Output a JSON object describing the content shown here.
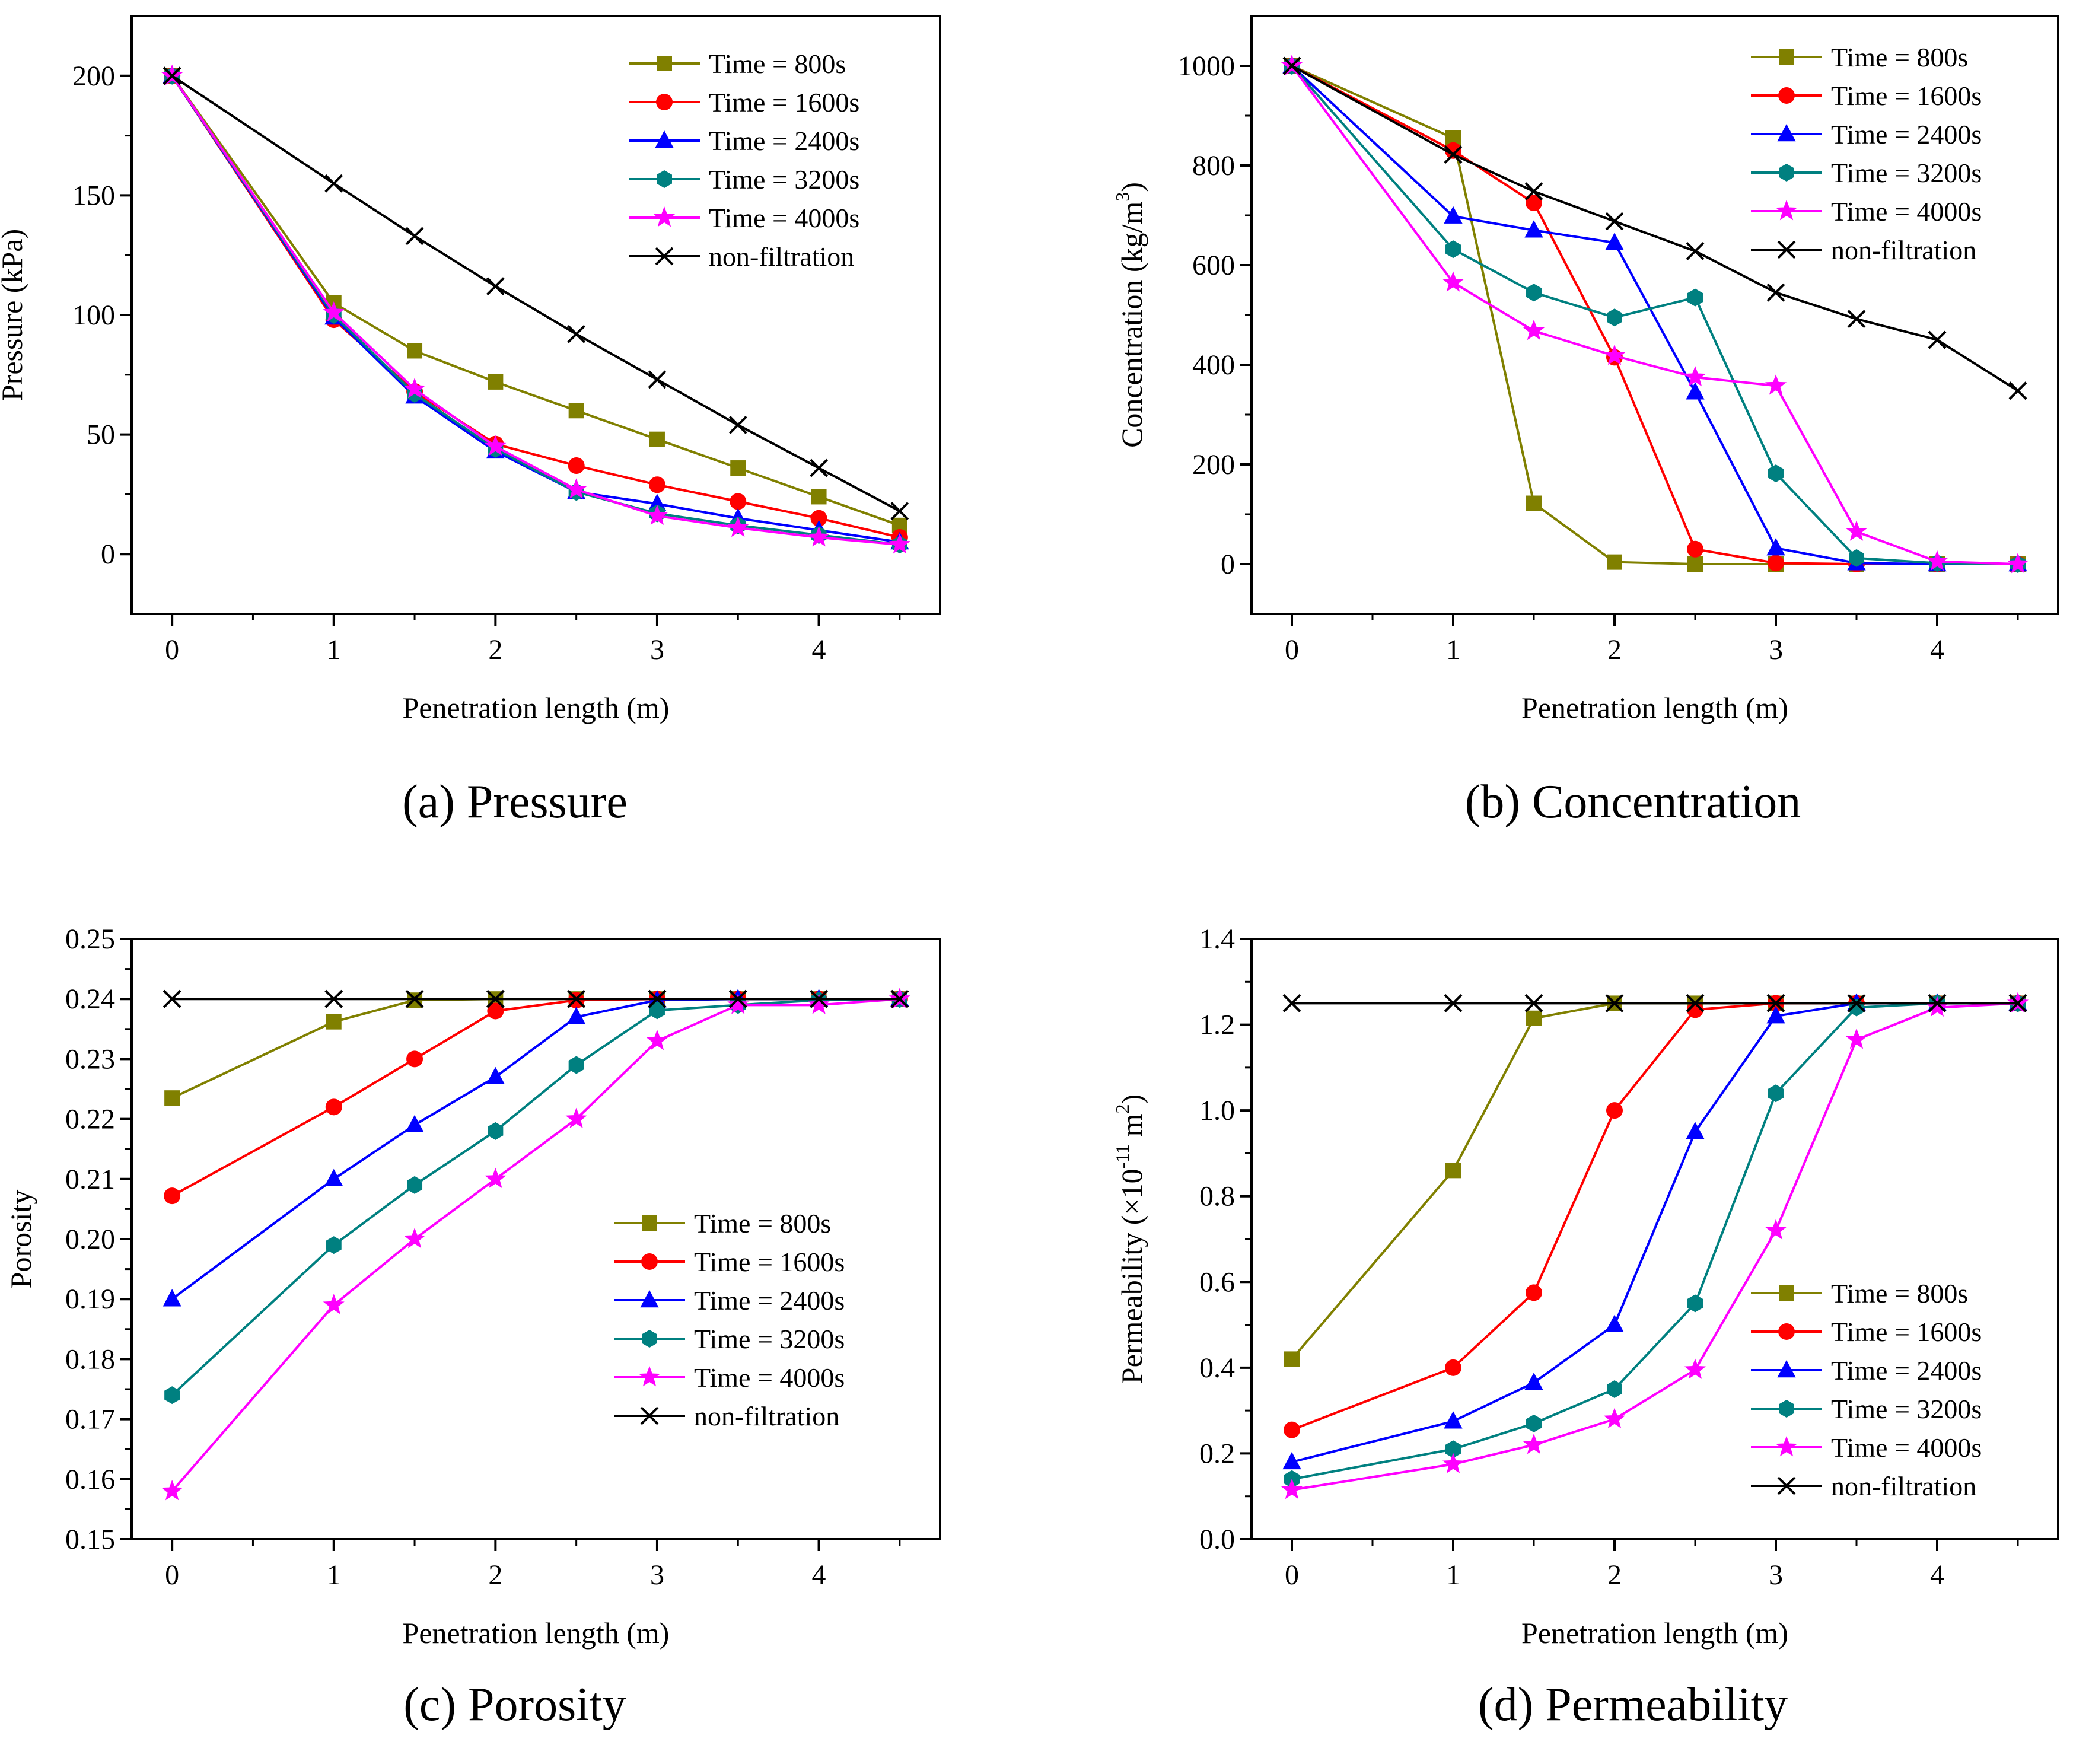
{
  "colors": {
    "t800": "#808000",
    "t1600": "#ff0000",
    "t2400": "#0000ff",
    "t3200": "#008080",
    "t4000": "#ff00ff",
    "nonfiltration": "#000000"
  },
  "chart_data": [
    {
      "id": "a",
      "type": "line",
      "caption": "(a) Pressure",
      "xlabel": "Penetration length (m)",
      "ylabel": "Pressure (kPa)",
      "xlim": [
        -0.25,
        4.75
      ],
      "ylim": [
        -25,
        225
      ],
      "xticks": [
        0,
        1,
        2,
        3,
        4
      ],
      "xtick_labels": [
        "0",
        "1",
        "2",
        "3",
        "4"
      ],
      "yticks": [
        0,
        50,
        100,
        150,
        200
      ],
      "ytick_labels": [
        "0",
        "50",
        "100",
        "150",
        "200"
      ],
      "legend_position": "top-right",
      "x": [
        0,
        1,
        1.5,
        2,
        2.5,
        3,
        3.5,
        4,
        4.5
      ],
      "series": [
        {
          "name": "Time = 800s",
          "color_key": "t800",
          "marker": "square",
          "values": [
            200,
            105,
            85,
            72,
            60,
            48,
            36,
            24,
            12
          ]
        },
        {
          "name": "Time = 1600s",
          "color_key": "t1600",
          "marker": "circle",
          "values": [
            200,
            98,
            68,
            46,
            37,
            29,
            22,
            15,
            7
          ]
        },
        {
          "name": "Time = 2400s",
          "color_key": "t2400",
          "marker": "triangle",
          "values": [
            200,
            99,
            66,
            43,
            26,
            21,
            15,
            10,
            5
          ]
        },
        {
          "name": "Time = 3200s",
          "color_key": "t3200",
          "marker": "pentagon",
          "values": [
            200,
            100,
            67,
            44,
            26,
            17,
            12,
            8,
            4
          ]
        },
        {
          "name": "Time = 4000s",
          "color_key": "t4000",
          "marker": "star",
          "values": [
            200,
            101,
            69,
            45,
            27,
            16,
            11,
            7,
            4
          ]
        },
        {
          "name": "non-filtration",
          "color_key": "nonfiltration",
          "marker": "x",
          "values": [
            200,
            155,
            133,
            112,
            92,
            73,
            54,
            36,
            18
          ]
        }
      ]
    },
    {
      "id": "b",
      "type": "line",
      "caption": "(b) Concentration",
      "xlabel": "Penetration length (m)",
      "ylabel": "Concentration (kg/m",
      "ylabel_sup": "3",
      "ylabel_tail": ")",
      "xlim": [
        -0.25,
        4.75
      ],
      "ylim": [
        -100,
        1100
      ],
      "xticks": [
        0,
        1,
        2,
        3,
        4
      ],
      "xtick_labels": [
        "0",
        "1",
        "2",
        "3",
        "4"
      ],
      "yticks": [
        0,
        200,
        400,
        600,
        800,
        1000
      ],
      "ytick_labels": [
        "0",
        "200",
        "400",
        "600",
        "800",
        "1000"
      ],
      "legend_position": "top-right",
      "x": [
        0,
        1,
        1.5,
        2,
        2.5,
        3,
        3.5,
        4,
        4.5
      ],
      "series": [
        {
          "name": "Time = 800s",
          "color_key": "t800",
          "marker": "square",
          "values": [
            1000,
            855,
            122,
            4,
            0,
            0,
            0,
            0,
            0
          ]
        },
        {
          "name": "Time = 1600s",
          "color_key": "t1600",
          "marker": "circle",
          "values": [
            1000,
            830,
            725,
            415,
            30,
            2,
            0,
            0,
            0
          ]
        },
        {
          "name": "Time = 2400s",
          "color_key": "t2400",
          "marker": "triangle",
          "values": [
            1000,
            698,
            670,
            645,
            345,
            32,
            2,
            0,
            0
          ]
        },
        {
          "name": "Time = 3200s",
          "color_key": "t3200",
          "marker": "pentagon",
          "values": [
            1000,
            632,
            545,
            495,
            535,
            182,
            12,
            2,
            0
          ]
        },
        {
          "name": "Time = 4000s",
          "color_key": "t4000",
          "marker": "star",
          "values": [
            1000,
            565,
            468,
            418,
            375,
            358,
            65,
            5,
            0
          ]
        },
        {
          "name": "non-filtration",
          "color_key": "nonfiltration",
          "marker": "x",
          "values": [
            1000,
            822,
            748,
            688,
            628,
            545,
            492,
            450,
            348
          ]
        }
      ]
    },
    {
      "id": "c",
      "type": "line",
      "caption": "(c) Porosity",
      "xlabel": "Penetration length (m)",
      "ylabel": "Porosity",
      "xlim": [
        -0.25,
        4.75
      ],
      "ylim": [
        0.15,
        0.25
      ],
      "xticks": [
        0,
        1,
        2,
        3,
        4
      ],
      "xtick_labels": [
        "0",
        "1",
        "2",
        "3",
        "4"
      ],
      "yticks": [
        0.15,
        0.16,
        0.17,
        0.18,
        0.19,
        0.2,
        0.21,
        0.22,
        0.23,
        0.24,
        0.25
      ],
      "ytick_labels": [
        "0.15",
        "0.16",
        "0.17",
        "0.18",
        "0.19",
        "0.20",
        "0.21",
        "0.22",
        "0.23",
        "0.24",
        "0.25"
      ],
      "legend_position": "center-right",
      "x": [
        0,
        1,
        1.5,
        2,
        2.5,
        3,
        3.5,
        4,
        4.5
      ],
      "series": [
        {
          "name": "Time = 800s",
          "color_key": "t800",
          "marker": "square",
          "values": [
            0.2235,
            0.2362,
            0.2398,
            0.24,
            0.24,
            0.24,
            0.24,
            0.24,
            0.24
          ]
        },
        {
          "name": "Time = 1600s",
          "color_key": "t1600",
          "marker": "circle",
          "values": [
            0.2072,
            0.222,
            0.23,
            0.238,
            0.2398,
            0.24,
            0.24,
            0.24,
            0.24
          ]
        },
        {
          "name": "Time = 2400s",
          "color_key": "t2400",
          "marker": "triangle",
          "values": [
            0.19,
            0.21,
            0.219,
            0.227,
            0.237,
            0.2398,
            0.24,
            0.24,
            0.24
          ]
        },
        {
          "name": "Time = 3200s",
          "color_key": "t3200",
          "marker": "pentagon",
          "values": [
            0.174,
            0.199,
            0.209,
            0.218,
            0.229,
            0.2381,
            0.239,
            0.2398,
            0.24
          ]
        },
        {
          "name": "Time = 4000s",
          "color_key": "t4000",
          "marker": "star",
          "values": [
            0.158,
            0.189,
            0.2,
            0.21,
            0.22,
            0.233,
            0.239,
            0.239,
            0.24
          ]
        },
        {
          "name": "non-filtration",
          "color_key": "nonfiltration",
          "marker": "x",
          "values": [
            0.24,
            0.24,
            0.24,
            0.24,
            0.24,
            0.24,
            0.24,
            0.24,
            0.24
          ]
        }
      ]
    },
    {
      "id": "d",
      "type": "line",
      "caption": "(d) Permeability",
      "xlabel": "Penetration length (m)",
      "ylabel": "Permeability (×10",
      "ylabel_sup": "-11",
      "ylabel_tail": " m",
      "ylabel_sup2": "2",
      "ylabel_tail2": ")",
      "xlim": [
        -0.25,
        4.75
      ],
      "ylim": [
        0.0,
        1.4
      ],
      "xticks": [
        0,
        1,
        2,
        3,
        4
      ],
      "xtick_labels": [
        "0",
        "1",
        "2",
        "3",
        "4"
      ],
      "yticks": [
        0.0,
        0.2,
        0.4,
        0.6,
        0.8,
        1.0,
        1.2,
        1.4
      ],
      "ytick_labels": [
        "0.0",
        "0.2",
        "0.4",
        "0.6",
        "0.8",
        "1.0",
        "1.2",
        "1.4"
      ],
      "legend_position": "bottom-right",
      "x": [
        0,
        1,
        1.5,
        2,
        2.5,
        3,
        3.5,
        4,
        4.5
      ],
      "series": [
        {
          "name": "Time = 800s",
          "color_key": "t800",
          "marker": "square",
          "values": [
            0.42,
            0.86,
            1.215,
            1.25,
            1.25,
            1.25,
            1.25,
            1.25,
            1.25
          ]
        },
        {
          "name": "Time = 1600s",
          "color_key": "t1600",
          "marker": "circle",
          "values": [
            0.255,
            0.4,
            0.575,
            1.0,
            1.235,
            1.25,
            1.25,
            1.25,
            1.25
          ]
        },
        {
          "name": "Time = 2400s",
          "color_key": "t2400",
          "marker": "triangle",
          "values": [
            0.18,
            0.275,
            0.365,
            0.5,
            0.95,
            1.22,
            1.25,
            1.25,
            1.25
          ]
        },
        {
          "name": "Time = 3200s",
          "color_key": "t3200",
          "marker": "pentagon",
          "values": [
            0.14,
            0.21,
            0.27,
            0.35,
            0.55,
            1.04,
            1.24,
            1.25,
            1.25
          ]
        },
        {
          "name": "Time = 4000s",
          "color_key": "t4000",
          "marker": "star",
          "values": [
            0.115,
            0.175,
            0.22,
            0.28,
            0.395,
            0.72,
            1.165,
            1.24,
            1.25
          ]
        },
        {
          "name": "non-filtration",
          "color_key": "nonfiltration",
          "marker": "x",
          "values": [
            1.25,
            1.25,
            1.25,
            1.25,
            1.25,
            1.25,
            1.25,
            1.25,
            1.25
          ]
        }
      ]
    }
  ]
}
